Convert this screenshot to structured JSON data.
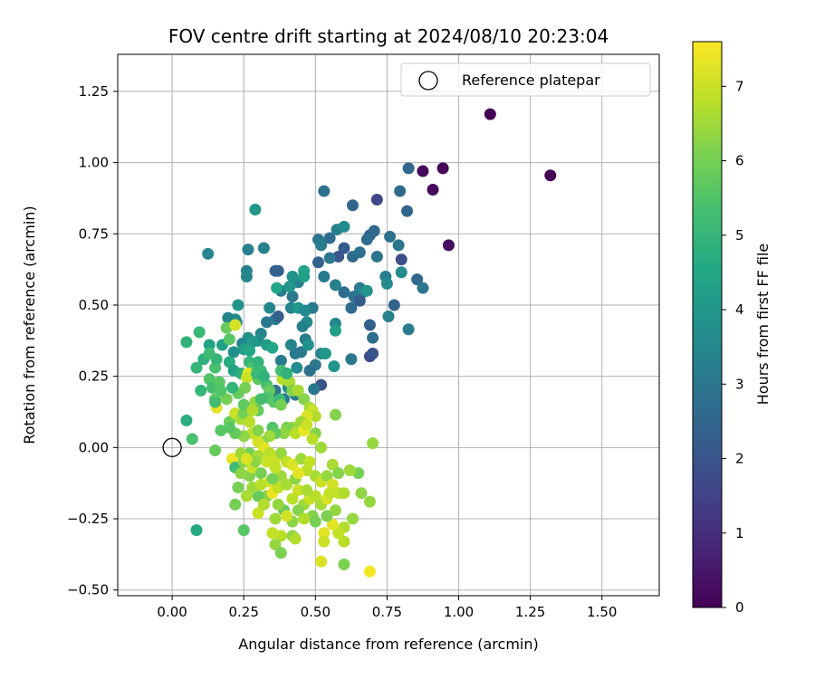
{
  "chart_data": {
    "type": "scatter",
    "title": "FOV centre drift starting at 2024/08/10 20:23:04",
    "xlabel": "Angular distance from reference (arcmin)",
    "ylabel": "Rotation from reference (arcmin)",
    "colorbar_label": "Hours from first FF file",
    "xlim": [
      -0.19,
      1.7
    ],
    "ylim": [
      -0.52,
      1.38
    ],
    "xticks": [
      0.0,
      0.25,
      0.5,
      0.75,
      1.0,
      1.25,
      1.5
    ],
    "xtick_labels": [
      "0.00",
      "0.25",
      "0.50",
      "0.75",
      "1.00",
      "1.25",
      "1.50"
    ],
    "yticks": [
      -0.5,
      -0.25,
      0.0,
      0.25,
      0.5,
      0.75,
      1.0,
      1.25
    ],
    "ytick_labels": [
      "−0.50",
      "−0.25",
      "0.00",
      "0.25",
      "0.50",
      "0.75",
      "1.00",
      "1.25"
    ],
    "colorbar_range": [
      0,
      7.6
    ],
    "colorbar_ticks": [
      0,
      1,
      2,
      3,
      4,
      5,
      6,
      7
    ],
    "colorbar_tick_labels": [
      "0",
      "1",
      "2",
      "3",
      "4",
      "5",
      "6",
      "7"
    ],
    "colormap": "viridis",
    "grid": true,
    "legend": {
      "placement": "top-right",
      "entries": [
        "Reference platepar"
      ]
    },
    "reference": {
      "x": 0.0,
      "y": 0.0
    },
    "points": [
      [
        1.11,
        1.17,
        0.0
      ],
      [
        1.32,
        0.955,
        0.05
      ],
      [
        0.945,
        0.98,
        0.1
      ],
      [
        0.875,
        0.97,
        0.15
      ],
      [
        0.91,
        0.905,
        0.2
      ],
      [
        0.965,
        0.71,
        0.3
      ],
      [
        0.825,
        0.98,
        2.5
      ],
      [
        0.795,
        0.9,
        2.6
      ],
      [
        0.82,
        0.83,
        2.5
      ],
      [
        0.715,
        0.87,
        1.6
      ],
      [
        0.63,
        0.85,
        2.5
      ],
      [
        0.53,
        0.9,
        2.8
      ],
      [
        0.69,
        0.745,
        2.4
      ],
      [
        0.705,
        0.76,
        2.6
      ],
      [
        0.76,
        0.74,
        2.8
      ],
      [
        0.79,
        0.71,
        3.0
      ],
      [
        0.68,
        0.73,
        2.7
      ],
      [
        0.6,
        0.7,
        2.2
      ],
      [
        0.55,
        0.735,
        2.7
      ],
      [
        0.51,
        0.73,
        3.0
      ],
      [
        0.575,
        0.765,
        3.3
      ],
      [
        0.6,
        0.775,
        3.6
      ],
      [
        0.52,
        0.71,
        3.2
      ],
      [
        0.63,
        0.67,
        2.6
      ],
      [
        0.655,
        0.685,
        2.8
      ],
      [
        0.58,
        0.67,
        2.0
      ],
      [
        0.55,
        0.665,
        3.0
      ],
      [
        0.51,
        0.65,
        2.4
      ],
      [
        0.53,
        0.6,
        3.1
      ],
      [
        0.715,
        0.67,
        2.9
      ],
      [
        0.8,
        0.66,
        1.8
      ],
      [
        0.745,
        0.6,
        3.2
      ],
      [
        0.75,
        0.575,
        3.6
      ],
      [
        0.855,
        0.59,
        2.5
      ],
      [
        0.875,
        0.56,
        3.0
      ],
      [
        0.8,
        0.615,
        3.6
      ],
      [
        0.655,
        0.56,
        3.1
      ],
      [
        0.66,
        0.54,
        3.4
      ],
      [
        0.635,
        0.53,
        2.9
      ],
      [
        0.6,
        0.545,
        2.7
      ],
      [
        0.57,
        0.57,
        3.3
      ],
      [
        0.68,
        0.55,
        3.9
      ],
      [
        0.655,
        0.515,
        2.2
      ],
      [
        0.625,
        0.49,
        2.6
      ],
      [
        0.755,
        0.46,
        3.3
      ],
      [
        0.775,
        0.5,
        2.4
      ],
      [
        0.825,
        0.415,
        3.2
      ],
      [
        0.69,
        0.43,
        2.3
      ],
      [
        0.7,
        0.385,
        2.7
      ],
      [
        0.69,
        0.32,
        1.7
      ],
      [
        0.7,
        0.33,
        2.0
      ],
      [
        0.625,
        0.31,
        3.0
      ],
      [
        0.57,
        0.435,
        3.5
      ],
      [
        0.57,
        0.41,
        4.3
      ],
      [
        0.52,
        0.33,
        3.4
      ],
      [
        0.535,
        0.33,
        4.0
      ],
      [
        0.565,
        0.285,
        3.9
      ],
      [
        0.52,
        0.22,
        2.0
      ],
      [
        0.49,
        0.49,
        3.0
      ],
      [
        0.47,
        0.44,
        3.6
      ],
      [
        0.5,
        0.29,
        3.0
      ],
      [
        0.48,
        0.27,
        2.8
      ],
      [
        0.495,
        0.205,
        3.0
      ],
      [
        0.45,
        0.335,
        3.0
      ],
      [
        0.455,
        0.425,
        3.3
      ],
      [
        0.465,
        0.38,
        3.1
      ],
      [
        0.475,
        0.36,
        3.8
      ],
      [
        0.415,
        0.36,
        3.4
      ],
      [
        0.43,
        0.33,
        3.1
      ],
      [
        0.38,
        0.305,
        3.2
      ],
      [
        0.435,
        0.28,
        3.6
      ],
      [
        0.405,
        0.21,
        3.7
      ],
      [
        0.43,
        0.185,
        3.2
      ],
      [
        0.39,
        0.17,
        3.0
      ],
      [
        0.36,
        0.2,
        2.9
      ],
      [
        0.36,
        0.45,
        3.2
      ],
      [
        0.37,
        0.46,
        2.3
      ],
      [
        0.415,
        0.49,
        3.4
      ],
      [
        0.44,
        0.49,
        3.9
      ],
      [
        0.465,
        0.48,
        3.6
      ],
      [
        0.42,
        0.53,
        3.0
      ],
      [
        0.44,
        0.58,
        3.3
      ],
      [
        0.42,
        0.6,
        3.8
      ],
      [
        0.37,
        0.62,
        2.2
      ],
      [
        0.38,
        0.55,
        3.1
      ],
      [
        0.41,
        0.565,
        4.0
      ],
      [
        0.46,
        0.6,
        4.2
      ],
      [
        0.46,
        0.62,
        4.4
      ],
      [
        0.365,
        0.56,
        4.5
      ],
      [
        0.34,
        0.49,
        3.5
      ],
      [
        0.33,
        0.44,
        3.0
      ],
      [
        0.31,
        0.4,
        3.4
      ],
      [
        0.3,
        0.375,
        3.7
      ],
      [
        0.33,
        0.36,
        4.2
      ],
      [
        0.35,
        0.35,
        4.5
      ],
      [
        0.36,
        0.62,
        2.4
      ],
      [
        0.32,
        0.7,
        3.3
      ],
      [
        0.29,
        0.835,
        4.0
      ],
      [
        0.265,
        0.695,
        3.3
      ],
      [
        0.26,
        0.62,
        3.3
      ],
      [
        0.26,
        0.6,
        3.5
      ],
      [
        0.125,
        0.68,
        3.5
      ],
      [
        0.23,
        0.5,
        4.0
      ],
      [
        0.22,
        0.45,
        3.7
      ],
      [
        0.195,
        0.455,
        3.4
      ],
      [
        0.225,
        0.44,
        3.5
      ],
      [
        0.265,
        0.385,
        3.8
      ],
      [
        0.245,
        0.365,
        3.5
      ],
      [
        0.28,
        0.37,
        4.1
      ],
      [
        0.25,
        0.345,
        4.2
      ],
      [
        0.27,
        0.34,
        4.5
      ],
      [
        0.215,
        0.335,
        3.8
      ],
      [
        0.175,
        0.36,
        4.3
      ],
      [
        0.13,
        0.36,
        4.4
      ],
      [
        0.095,
        0.405,
        5.1
      ],
      [
        0.05,
        0.37,
        4.9
      ],
      [
        0.085,
        0.28,
        5.0
      ],
      [
        0.11,
        0.31,
        4.8
      ],
      [
        0.13,
        0.33,
        5.2
      ],
      [
        0.15,
        0.28,
        5.4
      ],
      [
        0.155,
        0.31,
        5.0
      ],
      [
        0.2,
        0.3,
        4.7
      ],
      [
        0.215,
        0.27,
        4.4
      ],
      [
        0.24,
        0.26,
        4.8
      ],
      [
        0.27,
        0.3,
        5.0
      ],
      [
        0.28,
        0.28,
        5.4
      ],
      [
        0.3,
        0.3,
        4.9
      ],
      [
        0.31,
        0.27,
        5.2
      ],
      [
        0.3,
        0.24,
        5.7
      ],
      [
        0.33,
        0.22,
        5.4
      ],
      [
        0.34,
        0.2,
        5.8
      ],
      [
        0.33,
        0.175,
        5.4
      ],
      [
        0.355,
        0.16,
        5.6
      ],
      [
        0.375,
        0.17,
        5.1
      ],
      [
        0.385,
        0.24,
        6.8
      ],
      [
        0.41,
        0.23,
        6.6
      ],
      [
        0.42,
        0.2,
        6.2
      ],
      [
        0.44,
        0.2,
        6.6
      ],
      [
        0.46,
        0.17,
        6.2
      ],
      [
        0.48,
        0.14,
        6.6
      ],
      [
        0.49,
        0.13,
        7.0
      ],
      [
        0.5,
        0.11,
        6.7
      ],
      [
        0.47,
        0.11,
        7.2
      ],
      [
        0.45,
        0.09,
        6.5
      ],
      [
        0.42,
        0.07,
        6.4
      ],
      [
        0.4,
        0.07,
        6.1
      ],
      [
        0.39,
        0.05,
        6.3
      ],
      [
        0.43,
        0.05,
        6.8
      ],
      [
        0.46,
        0.06,
        7.4
      ],
      [
        0.47,
        0.08,
        7.0
      ],
      [
        0.5,
        0.05,
        6.2
      ],
      [
        0.52,
        0.0,
        6.5
      ],
      [
        0.49,
        0.03,
        6.8
      ],
      [
        0.57,
        0.115,
        6.2
      ],
      [
        0.7,
        0.015,
        6.4
      ],
      [
        0.1,
        0.2,
        5.0
      ],
      [
        0.13,
        0.24,
        5.5
      ],
      [
        0.14,
        0.21,
        5.3
      ],
      [
        0.165,
        0.23,
        5.6
      ],
      [
        0.15,
        0.17,
        5.8
      ],
      [
        0.155,
        0.14,
        7.3
      ],
      [
        0.19,
        0.17,
        6.0
      ],
      [
        0.2,
        0.09,
        5.9
      ],
      [
        0.22,
        0.12,
        7.0
      ],
      [
        0.24,
        0.1,
        6.6
      ],
      [
        0.25,
        0.12,
        6.0
      ],
      [
        0.27,
        0.09,
        6.8
      ],
      [
        0.29,
        0.16,
        6.4
      ],
      [
        0.3,
        0.13,
        5.8
      ],
      [
        0.31,
        0.17,
        5.3
      ],
      [
        0.35,
        0.07,
        5.5
      ],
      [
        0.36,
        0.05,
        5.7
      ],
      [
        0.34,
        0.04,
        6.5
      ],
      [
        0.315,
        0.02,
        6.2
      ],
      [
        0.32,
        0.0,
        7.3
      ],
      [
        0.3,
        0.02,
        7.1
      ],
      [
        0.28,
        0.05,
        6.9
      ],
      [
        0.25,
        0.04,
        6.3
      ],
      [
        0.22,
        0.05,
        5.8
      ],
      [
        0.2,
        0.07,
        5.6
      ],
      [
        0.17,
        0.06,
        5.6
      ],
      [
        0.15,
        -0.01,
        5.8
      ],
      [
        0.21,
        -0.04,
        7.4
      ],
      [
        0.22,
        -0.07,
        5.2
      ],
      [
        0.25,
        -0.05,
        6.3
      ],
      [
        0.27,
        -0.02,
        6.0
      ],
      [
        0.3,
        -0.03,
        6.6
      ],
      [
        0.34,
        -0.02,
        6.8
      ],
      [
        0.36,
        -0.04,
        7.0
      ],
      [
        0.38,
        -0.02,
        6.4
      ],
      [
        0.4,
        -0.05,
        6.9
      ],
      [
        0.42,
        -0.06,
        7.2
      ],
      [
        0.45,
        -0.04,
        6.5
      ],
      [
        0.47,
        -0.08,
        6.8
      ],
      [
        0.5,
        -0.1,
        6.6
      ],
      [
        0.52,
        -0.12,
        7.0
      ],
      [
        0.54,
        -0.1,
        6.4
      ],
      [
        0.56,
        -0.13,
        7.1
      ],
      [
        0.58,
        -0.16,
        6.9
      ],
      [
        0.6,
        -0.16,
        6.7
      ],
      [
        0.65,
        -0.09,
        6.0
      ],
      [
        0.66,
        -0.16,
        6.3
      ],
      [
        0.69,
        -0.19,
        6.4
      ],
      [
        0.63,
        -0.25,
        6.4
      ],
      [
        0.6,
        -0.28,
        6.7
      ],
      [
        0.58,
        -0.3,
        6.9
      ],
      [
        0.56,
        -0.27,
        7.3
      ],
      [
        0.53,
        -0.3,
        7.3
      ],
      [
        0.53,
        -0.33,
        7.0
      ],
      [
        0.6,
        -0.33,
        6.8
      ],
      [
        0.6,
        -0.41,
        6.1
      ],
      [
        0.52,
        -0.4,
        7.2
      ],
      [
        0.69,
        -0.435,
        7.5
      ],
      [
        0.38,
        -0.31,
        6.8
      ],
      [
        0.36,
        -0.34,
        6.4
      ],
      [
        0.35,
        -0.3,
        6.9
      ],
      [
        0.38,
        -0.37,
        6.1
      ],
      [
        0.42,
        -0.31,
        6.3
      ],
      [
        0.43,
        -0.32,
        6.7
      ],
      [
        0.42,
        -0.26,
        6.3
      ],
      [
        0.39,
        -0.22,
        5.8
      ],
      [
        0.37,
        -0.2,
        6.4
      ],
      [
        0.33,
        -0.17,
        6.2
      ],
      [
        0.3,
        -0.17,
        5.8
      ],
      [
        0.28,
        -0.14,
        6.5
      ],
      [
        0.27,
        -0.1,
        6.2
      ],
      [
        0.28,
        -0.07,
        7.0
      ],
      [
        0.24,
        -0.09,
        6.3
      ],
      [
        0.23,
        -0.14,
        6.0
      ],
      [
        0.26,
        -0.17,
        6.6
      ],
      [
        0.22,
        -0.2,
        6.0
      ],
      [
        0.34,
        -0.12,
        7.2
      ],
      [
        0.35,
        -0.16,
        7.4
      ],
      [
        0.37,
        -0.14,
        6.9
      ],
      [
        0.4,
        -0.13,
        6.6
      ],
      [
        0.44,
        -0.15,
        7.0
      ],
      [
        0.46,
        -0.2,
        6.5
      ],
      [
        0.49,
        -0.24,
        6.2
      ],
      [
        0.48,
        -0.18,
        7.0
      ],
      [
        0.5,
        -0.17,
        6.8
      ],
      [
        0.52,
        -0.2,
        6.6
      ],
      [
        0.54,
        -0.18,
        7.2
      ],
      [
        0.57,
        -0.22,
        6.4
      ],
      [
        0.54,
        -0.24,
        6.1
      ],
      [
        0.5,
        -0.26,
        6.0
      ],
      [
        0.44,
        -0.22,
        6.2
      ],
      [
        0.42,
        -0.18,
        6.8
      ],
      [
        0.38,
        -0.1,
        6.5
      ],
      [
        0.36,
        -0.07,
        6.9
      ],
      [
        0.31,
        -0.09,
        6.0
      ],
      [
        0.29,
        -0.05,
        6.3
      ],
      [
        0.33,
        -0.05,
        7.0
      ],
      [
        0.35,
        -0.11,
        6.0
      ],
      [
        0.43,
        -0.11,
        6.3
      ],
      [
        0.47,
        -0.15,
        6.6
      ],
      [
        0.25,
        -0.29,
        5.6
      ],
      [
        0.3,
        -0.23,
        7.0
      ],
      [
        0.085,
        -0.29,
        4.6
      ],
      [
        0.05,
        0.095,
        4.7
      ],
      [
        0.07,
        0.03,
        5.4
      ],
      [
        0.25,
        0.15,
        5.7
      ],
      [
        0.265,
        0.26,
        7.3
      ],
      [
        0.26,
        0.245,
        7.0
      ],
      [
        0.255,
        0.21,
        6.0
      ],
      [
        0.23,
        0.19,
        5.8
      ],
      [
        0.21,
        0.21,
        5.0
      ],
      [
        0.17,
        0.2,
        5.5
      ],
      [
        0.15,
        0.16,
        5.3
      ],
      [
        0.19,
        0.42,
        5.8
      ],
      [
        0.22,
        0.43,
        7.1
      ],
      [
        0.2,
        0.38,
        5.6
      ],
      [
        0.295,
        0.26,
        5.1
      ],
      [
        0.32,
        0.25,
        4.9
      ],
      [
        0.38,
        0.27,
        5.3
      ],
      [
        0.4,
        0.26,
        4.9
      ],
      [
        0.38,
        0.15,
        6.0
      ],
      [
        0.3,
        0.06,
        6.2
      ],
      [
        0.28,
        0.13,
        6.7
      ],
      [
        0.24,
        -0.02,
        6.5
      ],
      [
        0.26,
        -0.04,
        7.2
      ],
      [
        0.31,
        -0.13,
        6.8
      ],
      [
        0.44,
        -0.09,
        7.3
      ],
      [
        0.48,
        -0.05,
        6.9
      ],
      [
        0.56,
        -0.06,
        6.6
      ],
      [
        0.58,
        -0.09,
        6.2
      ],
      [
        0.62,
        -0.08,
        6.5
      ],
      [
        0.55,
        -0.16,
        6.9
      ],
      [
        0.46,
        -0.25,
        6.7
      ],
      [
        0.4,
        -0.24,
        7.1
      ],
      [
        0.36,
        -0.25,
        6.5
      ],
      [
        0.32,
        -0.2,
        6.7
      ]
    ]
  }
}
